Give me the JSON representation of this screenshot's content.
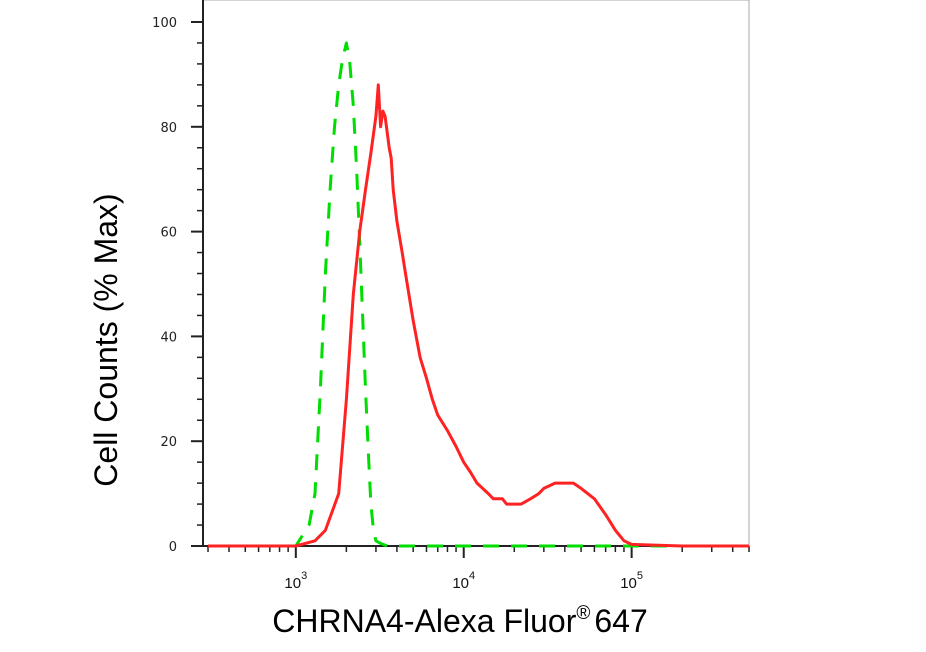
{
  "chart_data": {
    "type": "line",
    "title": "",
    "xlabel": "CHRNA4-Alexa Fluor",
    "xlabel_superscript": "®",
    "xlabel_suffix": "647",
    "ylabel": "Cell Counts (% Max)",
    "x_scale": "log",
    "xlim": [
      280,
      500000
    ],
    "ylim": [
      0,
      100
    ],
    "yticks": [
      "0",
      "20",
      "40",
      "60",
      "80",
      "100"
    ],
    "xticks": [
      {
        "base": "10",
        "exp": "3",
        "value": 1000
      },
      {
        "base": "10",
        "exp": "4",
        "value": 10000
      },
      {
        "base": "10",
        "exp": "5",
        "value": 100000
      }
    ],
    "series": [
      {
        "color": "#00dd00",
        "style": "dashed",
        "x": [
          300,
          1000,
          1200,
          1300,
          1400,
          1500,
          1600,
          1700,
          1800,
          1900,
          2000,
          2100,
          2200,
          2300,
          2400,
          2500,
          2600,
          2700,
          2800,
          2900,
          3000,
          3200,
          3500,
          4000,
          5000,
          10000,
          100000,
          500000
        ],
        "y": [
          0,
          0,
          4,
          10,
          30,
          52,
          68,
          80,
          88,
          93,
          96,
          92,
          84,
          72,
          58,
          44,
          30,
          18,
          8,
          3,
          1,
          0.5,
          0,
          0,
          0,
          0,
          0,
          0
        ]
      },
      {
        "color": "#ff2222",
        "style": "solid",
        "x": [
          300,
          1000,
          1300,
          1500,
          1800,
          2000,
          2200,
          2400,
          2600,
          2800,
          3000,
          3100,
          3200,
          3300,
          3400,
          3600,
          3700,
          3800,
          4000,
          4300,
          4500,
          5000,
          5500,
          6000,
          6500,
          7000,
          8000,
          9000,
          10000,
          11000,
          12000,
          14000,
          15000,
          17000,
          18000,
          20000,
          22000,
          25000,
          28000,
          30000,
          35000,
          40000,
          45000,
          50000,
          60000,
          70000,
          80000,
          90000,
          100000,
          200000,
          500000
        ],
        "y": [
          0,
          0,
          1,
          3,
          10,
          28,
          48,
          60,
          68,
          75,
          82,
          88,
          80,
          83,
          82,
          76,
          74,
          68,
          62,
          56,
          52,
          43,
          36,
          32,
          28,
          25,
          22,
          19,
          16,
          14,
          12,
          10,
          9,
          9,
          8,
          8,
          8,
          9,
          10,
          11,
          12,
          12,
          12,
          11,
          9,
          6,
          3,
          1,
          0.3,
          0,
          0
        ]
      }
    ],
    "grid": false,
    "legend": "none"
  }
}
